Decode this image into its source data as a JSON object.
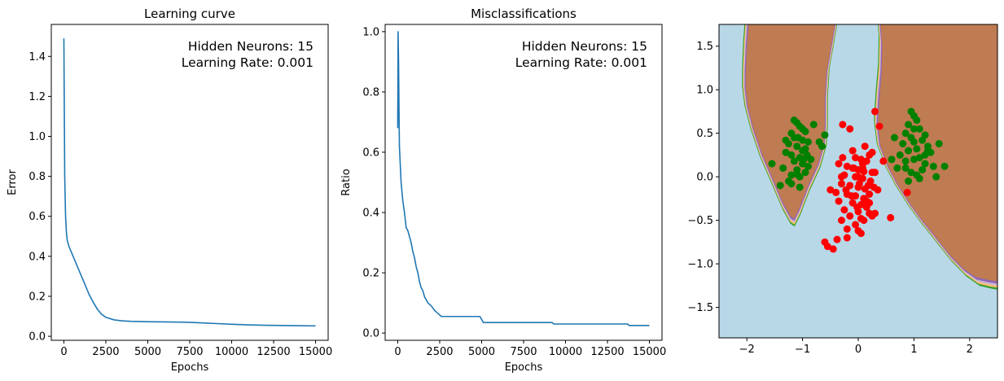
{
  "chart_data": [
    {
      "type": "line",
      "title": "Learning curve",
      "xlabel": "Epochs",
      "ylabel": "Error",
      "xlim": [
        -750,
        15750
      ],
      "ylim": [
        -0.02,
        1.56
      ],
      "xticks": [
        0,
        2500,
        5000,
        7500,
        10000,
        12500,
        15000
      ],
      "xtick_labels": [
        "0",
        "2500",
        "5000",
        "7500",
        "10000",
        "12500",
        "15000"
      ],
      "yticks": [
        0.0,
        0.2,
        0.4,
        0.6,
        0.8,
        1.0,
        1.2,
        1.4
      ],
      "ytick_labels": [
        "0.0",
        "0.2",
        "0.4",
        "0.6",
        "0.8",
        "1.0",
        "1.2",
        "1.4"
      ],
      "annotations": [
        "Hidden Neurons: 15",
        "Learning Rate: 0.001"
      ],
      "grid": false,
      "line_color": "#1f77b4",
      "series": [
        {
          "x": [
            0,
            20,
            50,
            100,
            150,
            200,
            300,
            400,
            500,
            700,
            900,
            1100,
            1300,
            1500,
            1750,
            2000,
            2250,
            2500,
            3000,
            3500,
            4000,
            5000,
            6000,
            7000,
            7500,
            8000,
            9000,
            10000,
            11000,
            12000,
            13000,
            14000,
            15000
          ],
          "y": [
            1.49,
            1.2,
            0.8,
            0.6,
            0.52,
            0.48,
            0.45,
            0.43,
            0.41,
            0.37,
            0.33,
            0.29,
            0.25,
            0.21,
            0.17,
            0.135,
            0.11,
            0.095,
            0.082,
            0.077,
            0.075,
            0.073,
            0.072,
            0.071,
            0.07,
            0.068,
            0.064,
            0.06,
            0.057,
            0.055,
            0.054,
            0.053,
            0.052
          ]
        }
      ]
    },
    {
      "type": "line",
      "title": "Misclassifications",
      "xlabel": "Epochs",
      "ylabel": "Ratio",
      "xlim": [
        -750,
        15750
      ],
      "ylim": [
        -0.024,
        1.024
      ],
      "xticks": [
        0,
        2500,
        5000,
        7500,
        10000,
        12500,
        15000
      ],
      "xtick_labels": [
        "0",
        "2500",
        "5000",
        "7500",
        "10000",
        "12500",
        "15000"
      ],
      "yticks": [
        0.0,
        0.2,
        0.4,
        0.6,
        0.8,
        1.0
      ],
      "ytick_labels": [
        "0.0",
        "0.2",
        "0.4",
        "0.6",
        "0.8",
        "1.0"
      ],
      "annotations": [
        "Hidden Neurons: 15",
        "Learning Rate: 0.001"
      ],
      "grid": false,
      "line_color": "#1f77b4",
      "series": [
        {
          "x": [
            0,
            20,
            50,
            80,
            100,
            150,
            200,
            250,
            300,
            400,
            500,
            600,
            700,
            800,
            900,
            1000,
            1100,
            1200,
            1300,
            1400,
            1500,
            1600,
            1800,
            2000,
            2200,
            2400,
            2600,
            4900,
            5100,
            9200,
            9300,
            13700,
            13800,
            15000
          ],
          "y": [
            0.68,
            1.0,
            0.9,
            0.72,
            0.62,
            0.56,
            0.5,
            0.47,
            0.44,
            0.4,
            0.35,
            0.34,
            0.32,
            0.3,
            0.27,
            0.25,
            0.22,
            0.2,
            0.17,
            0.15,
            0.14,
            0.12,
            0.1,
            0.09,
            0.075,
            0.065,
            0.055,
            0.055,
            0.035,
            0.035,
            0.03,
            0.03,
            0.025,
            0.025
          ]
        }
      ]
    },
    {
      "type": "scatter",
      "title": "",
      "xlabel": "",
      "ylabel": "",
      "xlim": [
        -2.5,
        2.5
      ],
      "ylim": [
        -1.85,
        1.75
      ],
      "xticks": [
        -2,
        -1,
        0,
        1,
        2
      ],
      "xtick_labels": [
        "−2",
        "−1",
        "0",
        "1",
        "2"
      ],
      "yticks": [
        -1.5,
        -1.0,
        -0.5,
        0.0,
        0.5,
        1.0,
        1.5
      ],
      "ytick_labels": [
        "−1.5",
        "−1.0",
        "−0.5",
        "0.0",
        "0.5",
        "1.0",
        "1.5"
      ],
      "grid": false,
      "background_color": "#b8d8e8",
      "region_color": "#bf7b52",
      "band_colors": [
        "#9268b3",
        "#cbb4d9",
        "#fdbf6f",
        "#33a02c"
      ],
      "series": [
        {
          "color": "#ff0000",
          "x": [
            0.3,
            -0.28,
            -0.15,
            0.38,
            0.2,
            -0.05,
            0.05,
            0.15,
            0.25,
            -0.35,
            -0.2,
            -0.1,
            0.0,
            0.1,
            0.3,
            -0.25,
            -0.05,
            0.08,
            0.22,
            -0.3,
            -0.15,
            0.0,
            0.12,
            0.28,
            -0.4,
            -0.2,
            -0.05,
            0.1,
            0.2,
            0.35,
            -0.35,
            -0.1,
            0.05,
            0.15,
            -0.25,
            0.0,
            0.2,
            -0.15,
            0.05,
            0.3,
            -0.3,
            -0.05,
            0.1,
            0.25,
            -0.2,
            0.0,
            0.18,
            -0.1,
            0.08,
            -0.3,
            0.12,
            -0.22,
            0.02,
            0.25,
            -0.12,
            0.15,
            -0.28,
            0.08,
            -0.02,
            0.2,
            0.58,
            0.45,
            0.88,
            -0.6,
            -0.38,
            -0.45,
            -0.5,
            -0.2,
            0.05,
            -0.55,
            0.1,
            -0.08,
            0.0
          ],
          "y": [
            0.75,
            0.6,
            0.55,
            0.58,
            0.25,
            0.22,
            0.2,
            0.18,
            0.28,
            0.15,
            0.12,
            0.1,
            0.08,
            0.06,
            0.05,
            0.02,
            0.0,
            -0.02,
            -0.05,
            -0.08,
            -0.1,
            -0.12,
            -0.14,
            -0.12,
            -0.18,
            -0.2,
            -0.22,
            -0.25,
            -0.2,
            -0.15,
            -0.28,
            -0.3,
            -0.32,
            -0.35,
            -0.38,
            -0.4,
            -0.3,
            -0.45,
            -0.48,
            -0.42,
            -0.5,
            -0.55,
            -0.5,
            -0.45,
            -0.6,
            -0.62,
            -0.1,
            0.3,
            0.1,
            0.0,
            0.35,
            -0.15,
            -0.08,
            0.05,
            -0.22,
            -0.28,
            0.22,
            0.15,
            -0.35,
            -0.42,
            -0.47,
            0.18,
            -0.18,
            -0.75,
            -0.72,
            -0.83,
            -0.15,
            -0.7,
            -0.65,
            -0.8,
            -0.25,
            0.1,
            0.0
          ]
        },
        {
          "color": "#008000",
          "x": [
            -1.1,
            -1.05,
            -0.95,
            -1.2,
            -1.15,
            -1.0,
            -0.9,
            -1.25,
            -1.1,
            -0.95,
            -1.0,
            -1.3,
            -1.2,
            -1.05,
            -0.85,
            -1.15,
            -1.0,
            -0.9,
            -1.35,
            -1.1,
            -0.95,
            -1.2,
            -1.05,
            -1.4,
            -1.25,
            -0.8,
            -1.0,
            -1.15,
            -0.7,
            -1.1,
            -1.3,
            -1.55,
            -0.65,
            -0.6,
            -1.05,
            -1.2,
            -0.92,
            -1.08,
            -0.98,
            0.95,
            1.0,
            1.05,
            0.9,
            1.1,
            0.85,
            1.2,
            0.95,
            1.15,
            1.0,
            0.8,
            1.25,
            1.05,
            0.9,
            1.3,
            0.75,
            1.1,
            1.0,
            0.85,
            1.2,
            1.35,
            0.7,
            1.15,
            0.95,
            1.05,
            1.4,
            0.65,
            1.25,
            0.9,
            1.1,
            1.55,
            0.6,
            1.0,
            0.85,
            1.45,
            1.2
          ],
          "y": [
            0.62,
            0.58,
            0.52,
            0.5,
            0.45,
            0.42,
            0.4,
            0.38,
            0.35,
            0.32,
            0.3,
            0.28,
            0.25,
            0.22,
            0.2,
            0.18,
            0.15,
            0.12,
            0.1,
            0.08,
            0.05,
            0.02,
            0.0,
            -0.1,
            -0.05,
            0.6,
            0.55,
            0.65,
            0.4,
            0.03,
            0.42,
            0.15,
            0.35,
            0.48,
            -0.12,
            -0.08,
            0.25,
            0.45,
            0.2,
            0.75,
            0.7,
            0.65,
            0.6,
            0.55,
            0.5,
            0.48,
            0.45,
            0.42,
            0.4,
            0.38,
            0.35,
            0.32,
            0.3,
            0.28,
            0.25,
            0.22,
            0.2,
            0.18,
            0.15,
            0.12,
            0.1,
            0.08,
            0.05,
            0.02,
            0.0,
            0.45,
            0.3,
            -0.05,
            -0.02,
            0.12,
            0.2,
            0.55,
            0.1,
            0.38,
            0.25
          ]
        }
      ]
    }
  ]
}
